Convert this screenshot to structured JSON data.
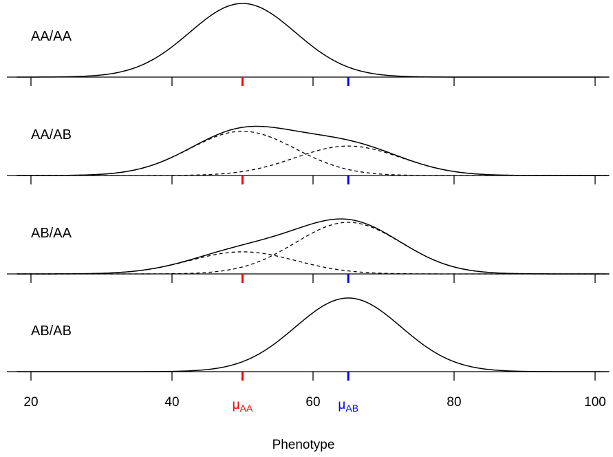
{
  "chart_data": {
    "type": "line",
    "xlabel": "Phenotype",
    "xlim": [
      18,
      102
    ],
    "x_ticks": [
      20,
      40,
      60,
      80,
      100
    ],
    "x_tick_labels": [
      "20",
      "40",
      "60",
      "80",
      "100"
    ],
    "markers": [
      {
        "label": "μ",
        "subscript": "AA",
        "x": 50,
        "color": "#ff0000"
      },
      {
        "label": "μ",
        "subscript": "AB",
        "x": 65,
        "color": "#0000ff"
      }
    ],
    "component_sd": 7.5,
    "panels": [
      {
        "label": "AA/AA",
        "components": [
          {
            "mean": 50,
            "weight": 1.0
          }
        ],
        "show_components": false
      },
      {
        "label": "AA/AB",
        "components": [
          {
            "mean": 50,
            "weight": 0.6
          },
          {
            "mean": 65,
            "weight": 0.4
          }
        ],
        "show_components": true
      },
      {
        "label": "AB/AA",
        "components": [
          {
            "mean": 50,
            "weight": 0.3
          },
          {
            "mean": 65,
            "weight": 0.7
          }
        ],
        "show_components": true
      },
      {
        "label": "AB/AB",
        "components": [
          {
            "mean": 65,
            "weight": 1.0
          }
        ],
        "show_components": false
      }
    ]
  }
}
